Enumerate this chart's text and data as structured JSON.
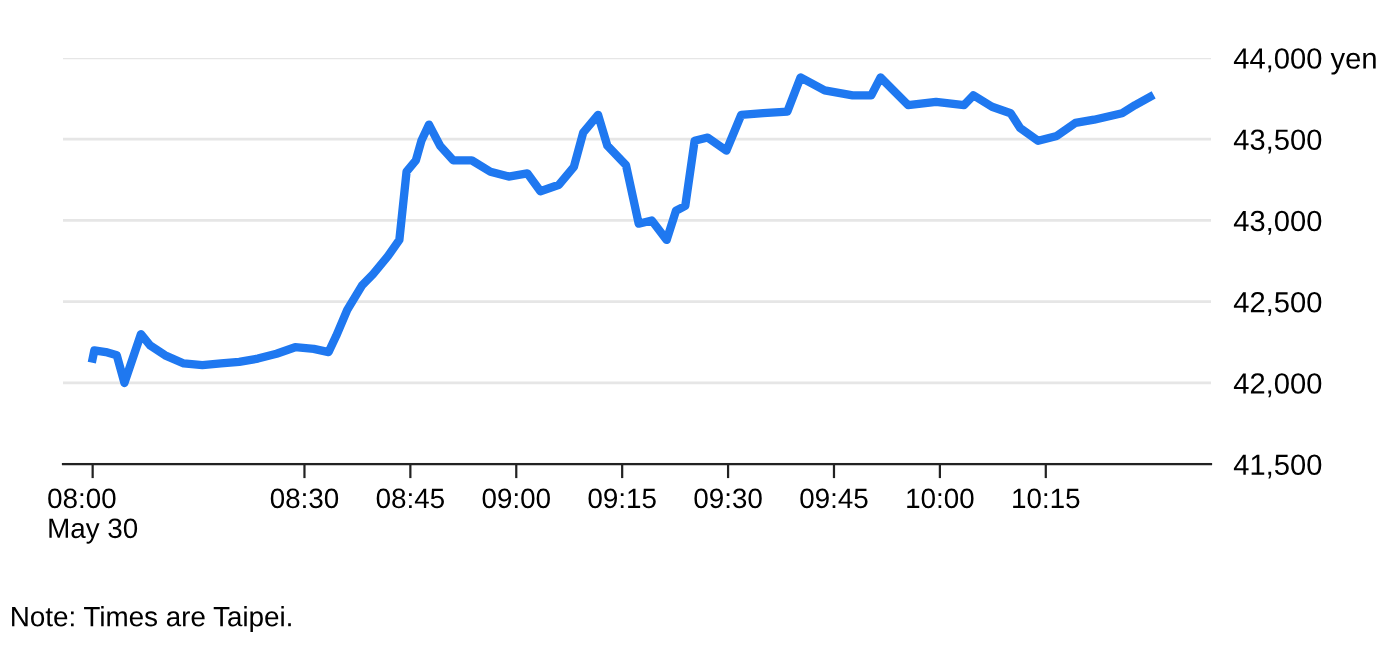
{
  "chart_data": {
    "type": "line",
    "x": [
      8.0,
      8.004,
      8.031,
      8.057,
      8.075,
      8.114,
      8.136,
      8.171,
      8.215,
      8.259,
      8.303,
      8.346,
      8.39,
      8.434,
      8.478,
      8.522,
      8.557,
      8.575,
      8.601,
      8.636,
      8.662,
      8.697,
      8.724,
      8.741,
      8.763,
      8.776,
      8.794,
      8.82,
      8.851,
      8.895,
      8.939,
      8.982,
      9.026,
      9.057,
      9.101,
      9.136,
      9.158,
      9.193,
      9.215,
      9.259,
      9.289,
      9.32,
      9.355,
      9.377,
      9.399,
      9.421,
      9.452,
      9.496,
      9.531,
      9.583,
      9.64,
      9.671,
      9.728,
      9.794,
      9.838,
      9.86,
      9.925,
      9.991,
      10.057,
      10.079,
      10.123,
      10.167,
      10.189,
      10.232,
      10.276,
      10.32,
      10.364,
      10.43,
      10.461,
      10.496
    ],
    "series": [
      {
        "color": "#1f78f0",
        "values": [
          42150,
          42200,
          42190,
          42170,
          42000,
          42300,
          42230,
          42170,
          42120,
          42110,
          42120,
          42130,
          42150,
          42180,
          42220,
          42210,
          42190,
          42290,
          42450,
          42600,
          42670,
          42780,
          42880,
          43300,
          43370,
          43490,
          43590,
          43460,
          43370,
          43370,
          43300,
          43270,
          43290,
          43180,
          43220,
          43330,
          43540,
          43650,
          43460,
          43340,
          42980,
          43000,
          42880,
          43060,
          43090,
          43490,
          43510,
          43430,
          43650,
          43660,
          43670,
          43880,
          43800,
          43770,
          43770,
          43880,
          43710,
          43730,
          43710,
          43770,
          43700,
          43660,
          43570,
          43490,
          43520,
          43600,
          43620,
          43660,
          43710,
          43760
        ]
      }
    ],
    "xlim": [
      7.93,
      10.64
    ],
    "ylim": [
      41500,
      44000
    ],
    "xticks": [
      {
        "value": 8.0,
        "label": "08:00\nMay 30"
      },
      {
        "value": 8.5,
        "label": "08:30"
      },
      {
        "value": 8.75,
        "label": "08:45"
      },
      {
        "value": 9.0,
        "label": "09:00"
      },
      {
        "value": 9.25,
        "label": "09:15"
      },
      {
        "value": 9.5,
        "label": "09:30"
      },
      {
        "value": 9.75,
        "label": "09:45"
      },
      {
        "value": 10.0,
        "label": "10:00"
      },
      {
        "value": 10.25,
        "label": "10:15"
      }
    ],
    "yticks": [
      {
        "value": 41500,
        "label": "41,500"
      },
      {
        "value": 42000,
        "label": "42,000"
      },
      {
        "value": 42500,
        "label": "42,500"
      },
      {
        "value": 43000,
        "label": "43,000"
      },
      {
        "value": 43500,
        "label": "43,500"
      },
      {
        "value": 44000,
        "label": "44,000 yen"
      }
    ],
    "grid": "y",
    "marker": "none",
    "line_style": "solid",
    "annotations": [
      "Note: Times are Taipei."
    ]
  }
}
